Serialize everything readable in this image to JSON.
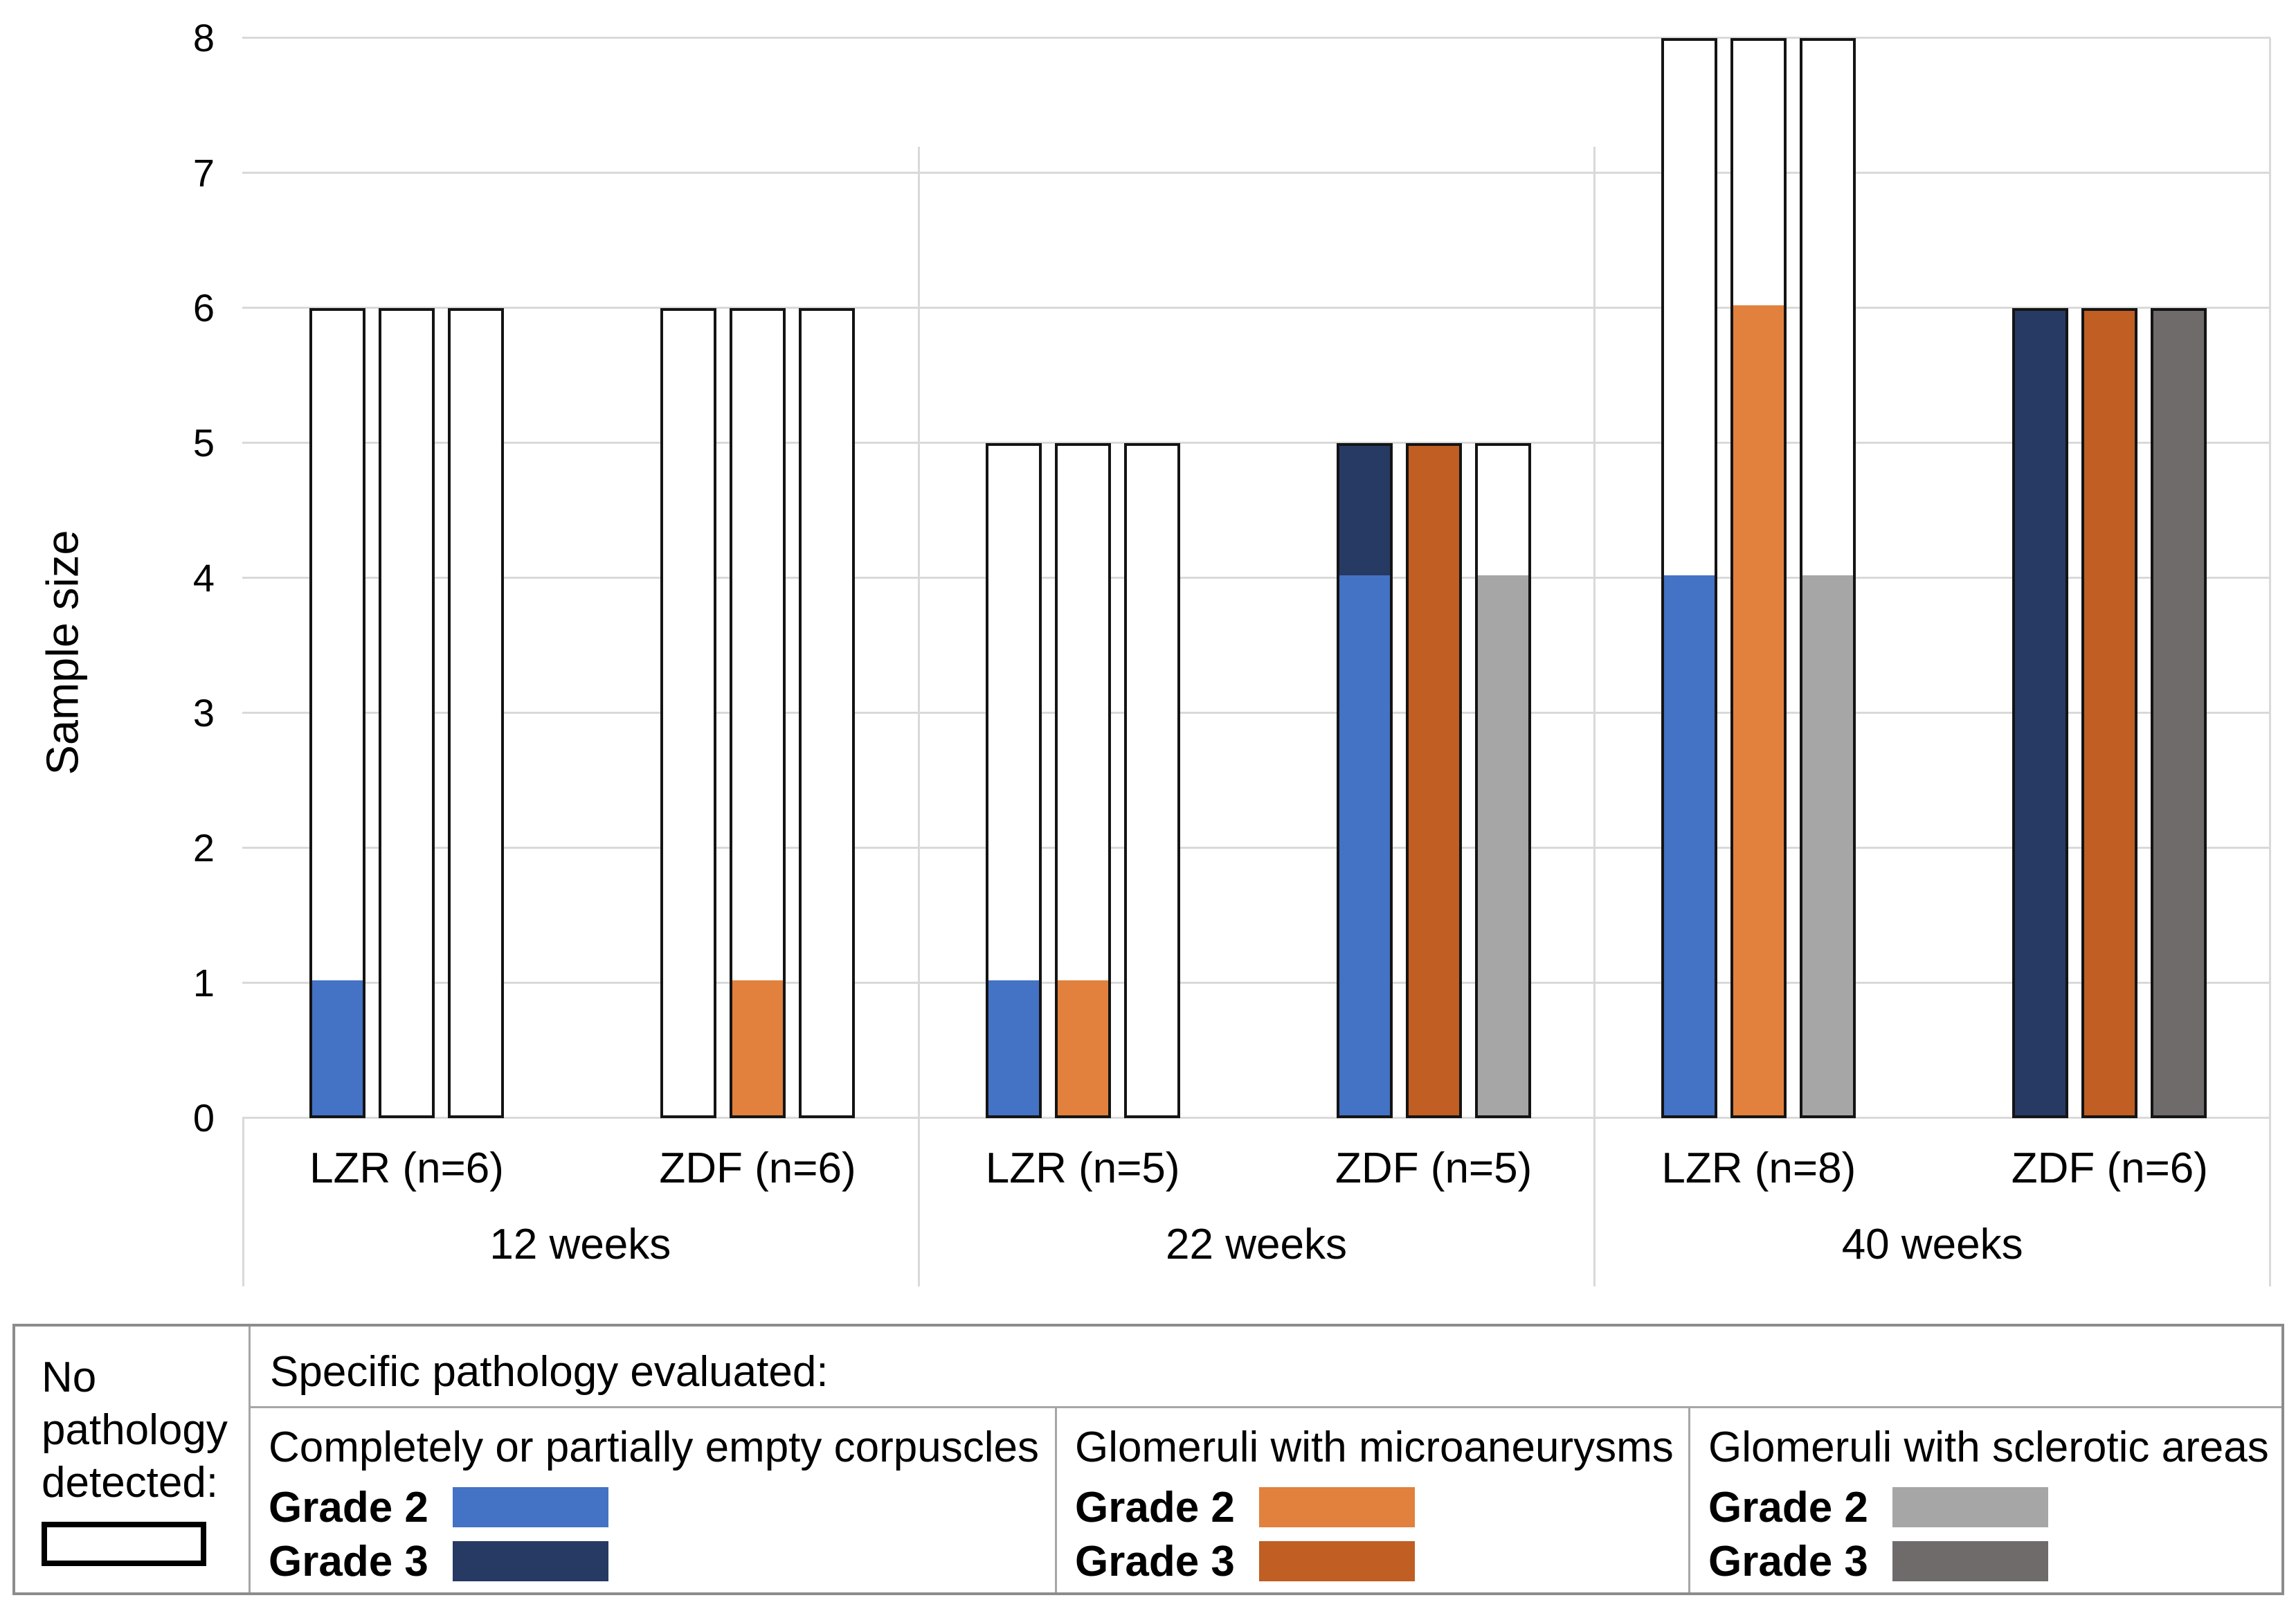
{
  "chart_data": {
    "type": "bar",
    "title": "",
    "xlabel": "",
    "ylabel": "Sample size",
    "ylim": [
      0,
      8
    ],
    "yticks": [
      0,
      1,
      2,
      3,
      4,
      5,
      6,
      7,
      8
    ],
    "grid": true,
    "bar_outline_meaning": "No pathology detected",
    "groups": [
      {
        "label": "12 weeks",
        "subgroups": [
          {
            "label": "LZR (n=6)",
            "bars": [
              {
                "pathology": "Completely or partially empty corpuscles",
                "total": 6,
                "segments": [
                  {
                    "grade": "Grade 2",
                    "value": 1,
                    "color": "#4472C4"
                  }
                ]
              },
              {
                "pathology": "Glomeruli with microaneurysms",
                "total": 6,
                "segments": []
              },
              {
                "pathology": "Glomeruli with sclerotic areas",
                "total": 6,
                "segments": []
              }
            ]
          },
          {
            "label": "ZDF (n=6)",
            "bars": [
              {
                "pathology": "Completely or partially empty corpuscles",
                "total": 6,
                "segments": []
              },
              {
                "pathology": "Glomeruli with microaneurysms",
                "total": 6,
                "segments": [
                  {
                    "grade": "Grade 2",
                    "value": 1,
                    "color": "#E1813D"
                  }
                ]
              },
              {
                "pathology": "Glomeruli with sclerotic areas",
                "total": 6,
                "segments": []
              }
            ]
          }
        ]
      },
      {
        "label": "22 weeks",
        "subgroups": [
          {
            "label": "LZR (n=5)",
            "bars": [
              {
                "pathology": "Completely or partially empty corpuscles",
                "total": 5,
                "segments": [
                  {
                    "grade": "Grade 2",
                    "value": 1,
                    "color": "#4472C4"
                  }
                ]
              },
              {
                "pathology": "Glomeruli with microaneurysms",
                "total": 5,
                "segments": [
                  {
                    "grade": "Grade 2",
                    "value": 1,
                    "color": "#E1813D"
                  }
                ]
              },
              {
                "pathology": "Glomeruli with sclerotic areas",
                "total": 5,
                "segments": []
              }
            ]
          },
          {
            "label": "ZDF (n=5)",
            "bars": [
              {
                "pathology": "Completely or partially empty corpuscles",
                "total": 5,
                "segments": [
                  {
                    "grade": "Grade 2",
                    "value": 4,
                    "color": "#4472C4"
                  },
                  {
                    "grade": "Grade 3",
                    "value": 1,
                    "color": "#263A64"
                  }
                ]
              },
              {
                "pathology": "Glomeruli with microaneurysms",
                "total": 5,
                "segments": [
                  {
                    "grade": "Grade 3",
                    "value": 5,
                    "color": "#C05E23"
                  }
                ]
              },
              {
                "pathology": "Glomeruli with sclerotic areas",
                "total": 5,
                "segments": [
                  {
                    "grade": "Grade 2",
                    "value": 4,
                    "color": "#A6A6A6"
                  }
                ]
              }
            ]
          }
        ]
      },
      {
        "label": "40 weeks",
        "subgroups": [
          {
            "label": "LZR (n=8)",
            "bars": [
              {
                "pathology": "Completely or partially empty corpuscles",
                "total": 8,
                "segments": [
                  {
                    "grade": "Grade 2",
                    "value": 4,
                    "color": "#4472C4"
                  }
                ]
              },
              {
                "pathology": "Glomeruli with microaneurysms",
                "total": 8,
                "segments": [
                  {
                    "grade": "Grade 2",
                    "value": 6,
                    "color": "#E1813D"
                  }
                ]
              },
              {
                "pathology": "Glomeruli with sclerotic areas",
                "total": 8,
                "segments": [
                  {
                    "grade": "Grade 2",
                    "value": 4,
                    "color": "#A6A6A6"
                  }
                ]
              }
            ]
          },
          {
            "label": "ZDF (n=6)",
            "bars": [
              {
                "pathology": "Completely or partially empty corpuscles",
                "total": 6,
                "segments": [
                  {
                    "grade": "Grade 3",
                    "value": 6,
                    "color": "#263A64"
                  }
                ]
              },
              {
                "pathology": "Glomeruli with microaneurysms",
                "total": 6,
                "segments": [
                  {
                    "grade": "Grade 3",
                    "value": 6,
                    "color": "#C05E23"
                  }
                ]
              },
              {
                "pathology": "Glomeruli with sclerotic areas",
                "total": 6,
                "segments": [
                  {
                    "grade": "Grade 3",
                    "value": 6,
                    "color": "#6F6B6B"
                  }
                ]
              }
            ]
          }
        ]
      }
    ]
  },
  "legend": {
    "no_pathology_label": "No pathology detected:",
    "header": "Specific pathology evaluated:",
    "categories": [
      {
        "title": "Completely or partially empty corpuscles",
        "grade2_label": "Grade 2",
        "grade2_color": "#4472C4",
        "grade3_label": "Grade 3",
        "grade3_color": "#263A64"
      },
      {
        "title": "Glomeruli with microaneurysms",
        "grade2_label": "Grade 2",
        "grade2_color": "#E1813D",
        "grade3_label": "Grade 3",
        "grade3_color": "#C05E23"
      },
      {
        "title": "Glomeruli with sclerotic areas",
        "grade2_label": "Grade 2",
        "grade2_color": "#A6A6A6",
        "grade3_label": "Grade 3",
        "grade3_color": "#6F6B6B"
      }
    ]
  },
  "colors": {
    "gridline": "#D9D9D9",
    "bar_border": "#141414",
    "table_border": "#8C8C8C"
  }
}
